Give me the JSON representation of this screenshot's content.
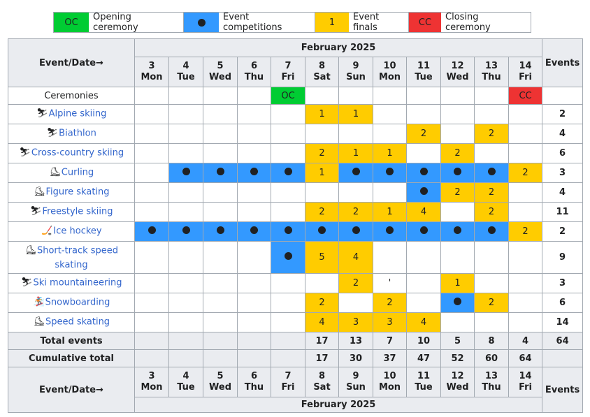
{
  "legend": [
    {
      "key": "oc",
      "symbol": "OC",
      "label": "Opening ceremony",
      "color": "#00cc33"
    },
    {
      "key": "comp",
      "symbol": "",
      "label": "Event competitions",
      "color": "#3399ff"
    },
    {
      "key": "final",
      "symbol": "1",
      "label": "Event finals",
      "color": "#ffcc00"
    },
    {
      "key": "cc",
      "symbol": "CC",
      "label": "Closing ceremony",
      "color": "#ee3333"
    }
  ],
  "header": {
    "event_date": "Event/Date→",
    "month": "February 2025",
    "events": "Events",
    "days": [
      {
        "num": "3",
        "dow": "Mon"
      },
      {
        "num": "4",
        "dow": "Tue"
      },
      {
        "num": "5",
        "dow": "Wed"
      },
      {
        "num": "6",
        "dow": "Thu"
      },
      {
        "num": "7",
        "dow": "Fri"
      },
      {
        "num": "8",
        "dow": "Sat"
      },
      {
        "num": "9",
        "dow": "Sun"
      },
      {
        "num": "10",
        "dow": "Mon"
      },
      {
        "num": "11",
        "dow": "Tue"
      },
      {
        "num": "12",
        "dow": "Wed"
      },
      {
        "num": "13",
        "dow": "Thu"
      },
      {
        "num": "14",
        "dow": "Fri"
      }
    ]
  },
  "ceremonies": {
    "label": "Ceremonies",
    "cells": [
      "",
      "",
      "",
      "",
      "OC",
      "",
      "",
      "",
      "",
      "",
      "",
      "CC"
    ]
  },
  "sports": [
    {
      "name": "Alpine skiing",
      "icon": "alpine-skiing-icon",
      "glyph": "⛷",
      "cells": [
        "",
        "",
        "",
        "",
        "",
        "1",
        "1",
        "",
        "",
        "",
        "",
        ""
      ],
      "total": "2"
    },
    {
      "name": "Biathlon",
      "icon": "biathlon-icon",
      "glyph": "⛷",
      "cells": [
        "",
        "",
        "",
        "",
        "",
        "",
        "",
        "",
        "2",
        "",
        "2",
        ""
      ],
      "total": "4"
    },
    {
      "name": "Cross-country skiing",
      "icon": "cross-country-skiing-icon",
      "glyph": "⛷",
      "cells": [
        "",
        "",
        "",
        "",
        "",
        "2",
        "1",
        "1",
        "",
        "2",
        "",
        ""
      ],
      "total": "6"
    },
    {
      "name": "Curling",
      "icon": "curling-icon",
      "glyph": "⛸",
      "cells": [
        "",
        "•",
        "•",
        "•",
        "•",
        "1",
        "•",
        "•",
        "•",
        "•",
        "•",
        "2"
      ],
      "total": "3"
    },
    {
      "name": "Figure skating",
      "icon": "figure-skating-icon",
      "glyph": "⛸",
      "cells": [
        "",
        "",
        "",
        "",
        "",
        "",
        "",
        "",
        "•",
        "2",
        "2",
        ""
      ],
      "total": "4"
    },
    {
      "name": "Freestyle skiing",
      "icon": "freestyle-skiing-icon",
      "glyph": "⛷",
      "cells": [
        "",
        "",
        "",
        "",
        "",
        "2",
        "2",
        "1",
        "4",
        "",
        "2",
        ""
      ],
      "total": "11"
    },
    {
      "name": "Ice hockey",
      "icon": "ice-hockey-icon",
      "glyph": "🏒",
      "cells": [
        "•",
        "•",
        "•",
        "•",
        "•",
        "•",
        "•",
        "•",
        "•",
        "•",
        "•",
        "2"
      ],
      "total": "2"
    },
    {
      "name": "Short-track speed skating",
      "icon": "short-track-speed-skating-icon",
      "glyph": "⛸",
      "cells": [
        "",
        "",
        "",
        "",
        "•",
        "5",
        "4",
        "",
        "",
        "",
        "",
        ""
      ],
      "total": "9",
      "tall": true
    },
    {
      "name": "Ski mountaineering",
      "icon": "ski-mountaineering-icon",
      "glyph": "⛷",
      "cells": [
        "",
        "",
        "",
        "",
        "",
        "",
        "2",
        "'",
        "",
        "1",
        "",
        ""
      ],
      "total": "3"
    },
    {
      "name": "Snowboarding",
      "icon": "snowboarding-icon",
      "glyph": "🏂",
      "cells": [
        "",
        "",
        "",
        "",
        "",
        "2",
        "",
        "2",
        "",
        "•",
        "2",
        ""
      ],
      "total": "6"
    },
    {
      "name": "Speed skating",
      "icon": "speed-skating-icon",
      "glyph": "⛸",
      "cells": [
        "",
        "",
        "",
        "",
        "",
        "4",
        "3",
        "3",
        "4",
        "",
        "",
        ""
      ],
      "total": "14"
    }
  ],
  "totals": {
    "label": "Total events",
    "cells": [
      "",
      "",
      "",
      "",
      "",
      "17",
      "13",
      "7",
      "10",
      "5",
      "8",
      "4"
    ],
    "grand": "64"
  },
  "cumulative": {
    "label": "Cumulative total",
    "cells": [
      "",
      "",
      "",
      "",
      "",
      "17",
      "30",
      "37",
      "47",
      "52",
      "60",
      "64"
    ]
  }
}
